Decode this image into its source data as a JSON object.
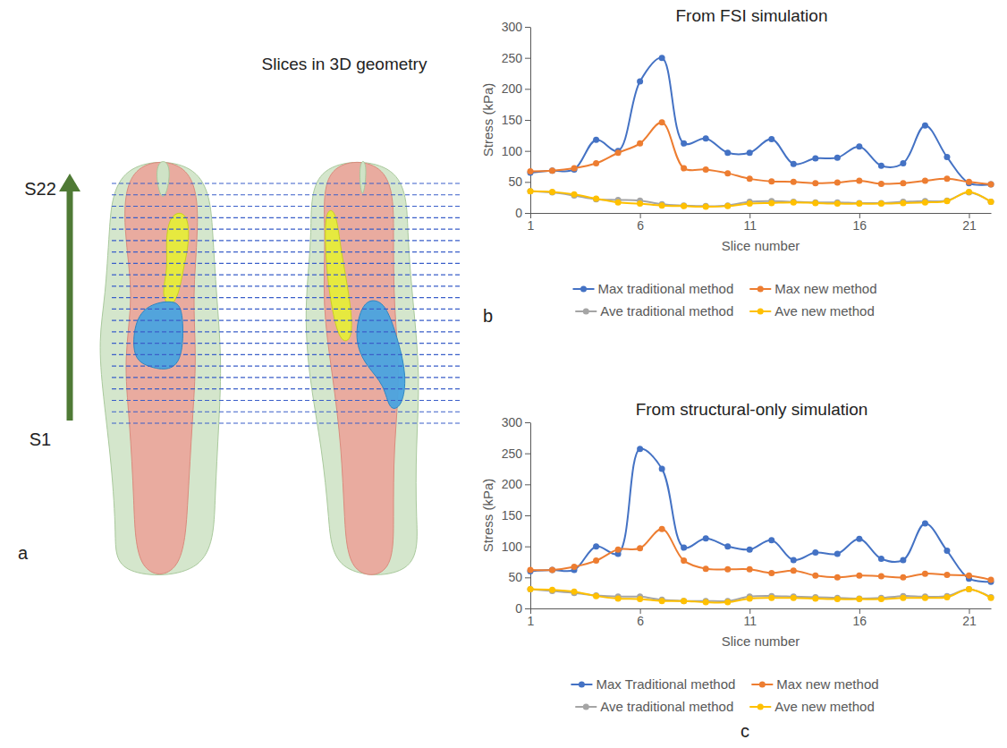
{
  "panel_labels": [
    "a",
    "b",
    "c"
  ],
  "diagram": {
    "title": "Slices in 3D geometry",
    "arrow_top_label": "S22",
    "arrow_bottom_label": "S1",
    "slices": 22
  },
  "chart_data": [
    {
      "type": "line",
      "title": "From FSI simulation",
      "x_label": "Slice number",
      "y_label": "Stress (kPa)",
      "x": [
        1,
        2,
        3,
        4,
        5,
        6,
        7,
        8,
        9,
        10,
        11,
        12,
        13,
        14,
        15,
        16,
        17,
        18,
        19,
        20,
        21,
        22
      ],
      "xlim": [
        1,
        22
      ],
      "xticks": [
        1,
        6,
        11,
        16,
        21
      ],
      "ylim": [
        0,
        300
      ],
      "yticks": [
        0,
        50,
        100,
        150,
        200,
        250,
        300
      ],
      "grid": false,
      "legend": "bottom",
      "marker": "circle",
      "line_style": "solid",
      "series": [
        {
          "name": "Max traditional method",
          "color": "#4472c4",
          "values": [
            65,
            68,
            70,
            118,
            100,
            212,
            250,
            112,
            120,
            97,
            97,
            119,
            79,
            88,
            89,
            107,
            76,
            80,
            141,
            90,
            48,
            46
          ]
        },
        {
          "name": "Max new method",
          "color": "#ed7d31",
          "values": [
            67,
            68,
            72,
            80,
            97,
            112,
            146,
            72,
            70,
            64,
            55,
            51,
            50,
            48,
            49,
            52,
            47,
            48,
            52,
            55,
            50,
            46
          ]
        },
        {
          "name": "Ave traditional method",
          "color": "#a5a5a5",
          "values": [
            35,
            33,
            28,
            22,
            21,
            20,
            14,
            12,
            11,
            12,
            18,
            19,
            18,
            17,
            17,
            16,
            16,
            18,
            19,
            20,
            33,
            18
          ]
        },
        {
          "name": "Ave new method",
          "color": "#ffc000",
          "values": [
            35,
            34,
            30,
            23,
            17,
            15,
            12,
            11,
            10,
            11,
            15,
            16,
            17,
            16,
            15,
            15,
            15,
            16,
            17,
            19,
            34,
            18
          ]
        }
      ]
    },
    {
      "type": "line",
      "title": "From structural-only simulation",
      "x_label": "Slice number",
      "y_label": "Stress (kPa)",
      "x": [
        1,
        2,
        3,
        4,
        5,
        6,
        7,
        8,
        9,
        10,
        11,
        12,
        13,
        14,
        15,
        16,
        17,
        18,
        19,
        20,
        21,
        22
      ],
      "xlim": [
        1,
        22
      ],
      "xticks": [
        1,
        6,
        11,
        16,
        21
      ],
      "ylim": [
        0,
        300
      ],
      "yticks": [
        0,
        50,
        100,
        150,
        200,
        250,
        300
      ],
      "grid": false,
      "legend": "bottom",
      "marker": "circle",
      "line_style": "solid",
      "series": [
        {
          "name": "Max Traditional method",
          "color": "#4472c4",
          "values": [
            60,
            62,
            62,
            100,
            88,
            257,
            225,
            98,
            113,
            100,
            95,
            110,
            78,
            90,
            88,
            112,
            80,
            78,
            137,
            93,
            48,
            43
          ]
        },
        {
          "name": "Max new method",
          "color": "#ed7d31",
          "values": [
            62,
            62,
            67,
            77,
            95,
            97,
            128,
            77,
            64,
            63,
            63,
            57,
            61,
            53,
            50,
            53,
            52,
            50,
            56,
            54,
            53,
            46
          ]
        },
        {
          "name": "Ave traditional method",
          "color": "#a5a5a5",
          "values": [
            31,
            28,
            25,
            21,
            19,
            19,
            14,
            12,
            12,
            12,
            19,
            20,
            19,
            18,
            17,
            16,
            17,
            20,
            19,
            20,
            31,
            18
          ]
        },
        {
          "name": "Ave new method",
          "color": "#ffc000",
          "values": [
            31,
            30,
            27,
            20,
            16,
            15,
            12,
            12,
            10,
            10,
            16,
            17,
            17,
            16,
            15,
            15,
            15,
            17,
            17,
            18,
            31,
            17
          ]
        }
      ]
    }
  ]
}
